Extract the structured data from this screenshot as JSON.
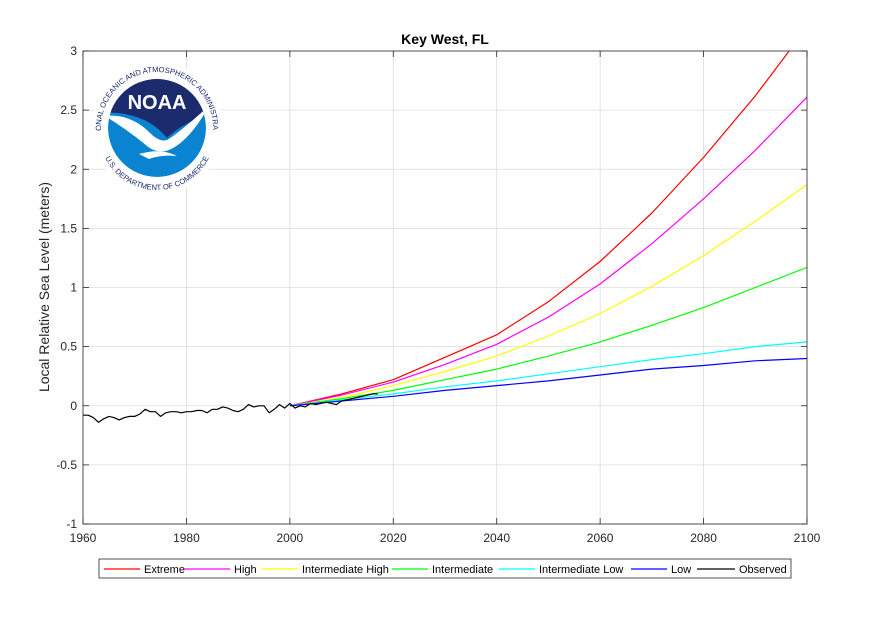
{
  "chart_data": {
    "type": "line",
    "title": "Key West, FL",
    "xlabel": "",
    "ylabel": "Local Relative Sea Level (meters)",
    "xlim": [
      1960,
      2100
    ],
    "ylim": [
      -1,
      3
    ],
    "xticks": [
      1960,
      1980,
      2000,
      2020,
      2040,
      2060,
      2080,
      2100
    ],
    "yticks": [
      -1,
      -0.5,
      0,
      0.5,
      1,
      1.5,
      2,
      2.5,
      3
    ],
    "ytick_labels": [
      "-1",
      "-0.5",
      "0",
      "0.5",
      "1",
      "1.5",
      "2",
      "2.5",
      "3"
    ],
    "grid": true,
    "legend_position": "bottom",
    "series": [
      {
        "name": "Extreme",
        "color": "#ff0000",
        "x": [
          2000,
          2010,
          2020,
          2030,
          2040,
          2050,
          2060,
          2070,
          2080,
          2090,
          2100
        ],
        "y": [
          0,
          0.1,
          0.22,
          0.41,
          0.6,
          0.88,
          1.22,
          1.63,
          2.1,
          2.62,
          3.2
        ]
      },
      {
        "name": "High",
        "color": "#ff00ff",
        "x": [
          2000,
          2010,
          2020,
          2030,
          2040,
          2050,
          2060,
          2070,
          2080,
          2090,
          2100
        ],
        "y": [
          0,
          0.09,
          0.2,
          0.35,
          0.52,
          0.75,
          1.03,
          1.37,
          1.75,
          2.16,
          2.61
        ]
      },
      {
        "name": "Intermediate High",
        "color": "#ffff00",
        "x": [
          2000,
          2010,
          2020,
          2030,
          2040,
          2050,
          2060,
          2070,
          2080,
          2090,
          2100
        ],
        "y": [
          0,
          0.07,
          0.17,
          0.29,
          0.42,
          0.59,
          0.78,
          1.01,
          1.27,
          1.56,
          1.87
        ]
      },
      {
        "name": "Intermediate",
        "color": "#00ff00",
        "x": [
          2000,
          2010,
          2020,
          2030,
          2040,
          2050,
          2060,
          2070,
          2080,
          2090,
          2100
        ],
        "y": [
          0,
          0.06,
          0.13,
          0.22,
          0.31,
          0.42,
          0.54,
          0.68,
          0.83,
          1.0,
          1.17
        ]
      },
      {
        "name": "Intermediate Low",
        "color": "#00ffff",
        "x": [
          2000,
          2010,
          2020,
          2030,
          2040,
          2050,
          2060,
          2070,
          2080,
          2090,
          2100
        ],
        "y": [
          0,
          0.05,
          0.1,
          0.16,
          0.21,
          0.27,
          0.33,
          0.39,
          0.44,
          0.5,
          0.54
        ]
      },
      {
        "name": "Low",
        "color": "#0000ff",
        "x": [
          2000,
          2010,
          2020,
          2030,
          2040,
          2050,
          2060,
          2070,
          2080,
          2090,
          2100
        ],
        "y": [
          0,
          0.04,
          0.08,
          0.13,
          0.17,
          0.21,
          0.26,
          0.31,
          0.34,
          0.38,
          0.4
        ]
      },
      {
        "name": "Observed",
        "color": "#000000",
        "x": [
          1960,
          1961,
          1962,
          1963,
          1964,
          1965,
          1966,
          1967,
          1968,
          1969,
          1970,
          1971,
          1972,
          1973,
          1974,
          1975,
          1976,
          1977,
          1978,
          1979,
          1980,
          1981,
          1982,
          1983,
          1984,
          1985,
          1986,
          1987,
          1988,
          1989,
          1990,
          1991,
          1992,
          1993,
          1994,
          1995,
          1996,
          1997,
          1998,
          1999,
          2000,
          2001,
          2002,
          2003,
          2004,
          2005,
          2006,
          2007,
          2008,
          2009,
          2010,
          2011,
          2012,
          2013,
          2014,
          2015,
          2016,
          2017
        ],
        "y": [
          -0.08,
          -0.08,
          -0.1,
          -0.14,
          -0.11,
          -0.09,
          -0.1,
          -0.12,
          -0.1,
          -0.09,
          -0.09,
          -0.07,
          -0.03,
          -0.05,
          -0.05,
          -0.09,
          -0.06,
          -0.05,
          -0.05,
          -0.06,
          -0.05,
          -0.05,
          -0.04,
          -0.04,
          -0.06,
          -0.03,
          -0.03,
          -0.01,
          -0.02,
          -0.04,
          -0.05,
          -0.03,
          0.01,
          -0.01,
          0.0,
          0.0,
          -0.06,
          -0.03,
          0.01,
          -0.02,
          0.02,
          -0.02,
          0.0,
          -0.01,
          0.02,
          0.01,
          0.02,
          0.03,
          0.02,
          0.01,
          0.04,
          0.05,
          0.06,
          0.07,
          0.08,
          0.09,
          0.1,
          0.1
        ]
      }
    ]
  },
  "logo": {
    "emblem_text": "NOAA",
    "ring_top": "NATIONAL OCEANIC AND ATMOSPHERIC ADMINISTRATION",
    "ring_bottom": "U.S. DEPARTMENT OF COMMERCE",
    "colors": {
      "navy": "#1c2a6e",
      "blue": "#0a83d0",
      "white": "#ffffff"
    }
  }
}
